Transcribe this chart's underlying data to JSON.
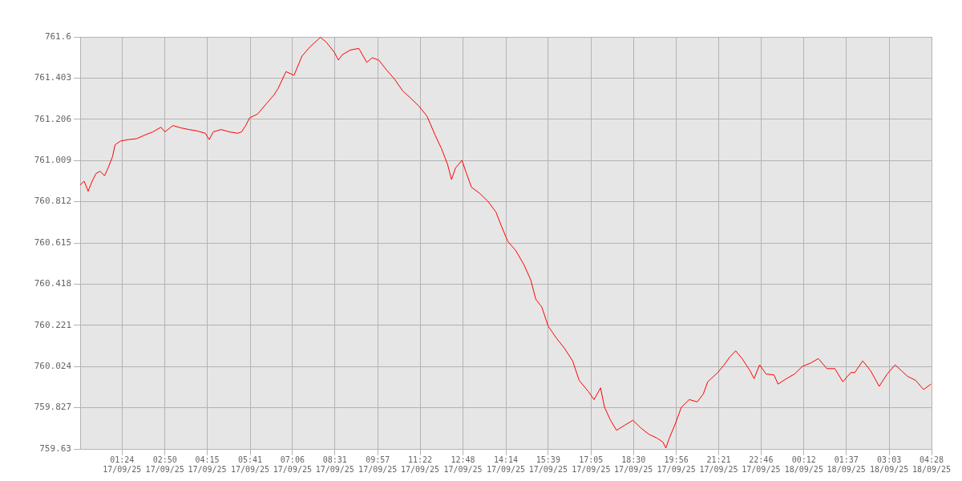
{
  "chart_data": {
    "type": "line",
    "grid": true,
    "xlim": [
      "--09-17T00:00",
      "--09-18T04:28"
    ],
    "xticks": [
      {
        "value": "--09-17T01:24",
        "label": "01:24 17/09/25"
      },
      {
        "value": "--09-17T02:50",
        "label": "02:50 17/09/25"
      },
      {
        "value": "--09-17T04:15",
        "label": "04:15 17/09/25"
      },
      {
        "value": "--09-17T05:41",
        "label": "05:41 17/09/25"
      },
      {
        "value": "--09-17T07:06",
        "label": "07:06 17/09/25"
      },
      {
        "value": "--09-17T08:31",
        "label": "08:31 17/09/25"
      },
      {
        "value": "--09-17T09:57",
        "label": "09:57 17/09/25"
      },
      {
        "value": "--09-17T11:22",
        "label": "11:22 17/09/25"
      },
      {
        "value": "--09-17T12:48",
        "label": "12:48 17/09/25"
      },
      {
        "value": "--09-17T14:14",
        "label": "14:14 17/09/25"
      },
      {
        "value": "--09-17T15:39",
        "label": "15:39 17/09/25"
      },
      {
        "value": "--09-17T17:05",
        "label": "17:05 17/09/25"
      },
      {
        "value": "--09-17T18:30",
        "label": "18:30 17/09/25"
      },
      {
        "value": "--09-17T19:56",
        "label": "19:56 17/09/25"
      },
      {
        "value": "--09-17T21:21",
        "label": "21:21 17/09/25"
      },
      {
        "value": "--09-17T22:46",
        "label": "22:46 17/09/25"
      },
      {
        "value": "--09-18T00:12",
        "label": "00:12 18/09/25"
      },
      {
        "value": "--09-18T01:37",
        "label": "01:37 18/09/25"
      },
      {
        "value": "--09-18T03:03",
        "label": "03:03 18/09/25"
      },
      {
        "value": "--09-18T04:28",
        "label": "04:28 18/09/25"
      }
    ],
    "ylim": [
      759.63,
      761.6
    ],
    "yticks": [
      759.63,
      759.827,
      760.024,
      760.221,
      760.418,
      760.615,
      760.812,
      761.009,
      761.206,
      761.403,
      761.6
    ],
    "series": [
      {
        "color": "#ff0000",
        "x": [
          "--09-17T00:00",
          "--09-17T00:08",
          "--09-17T00:16",
          "--09-17T00:24",
          "--09-17T00:32",
          "--09-17T00:40",
          "--09-17T00:49",
          "--09-17T00:56",
          "--09-17T01:05",
          "--09-17T01:10",
          "--09-17T01:21",
          "--09-17T01:37",
          "--09-17T01:53",
          "--09-17T02:10",
          "--09-17T02:26",
          "--09-17T02:42",
          "--09-17T02:50",
          "--09-17T03:06",
          "--09-17T03:22",
          "--09-17T03:38",
          "--09-17T03:55",
          "--09-17T04:11",
          "--09-17T04:19",
          "--09-17T04:27",
          "--09-17T04:43",
          "--09-17T04:59",
          "--09-17T05:16",
          "--09-17T05:24",
          "--09-17T05:32",
          "--09-17T05:40",
          "--09-17T05:56",
          "--09-17T06:13",
          "--09-17T06:29",
          "--09-17T06:37",
          "--09-17T06:53",
          "--09-17T07:09",
          "--09-17T07:25",
          "--09-17T07:41",
          "--09-17T07:58",
          "--09-17T08:02",
          "--09-17T08:14",
          "--09-17T08:30",
          "--09-17T08:38",
          "--09-17T08:46",
          "--09-17T09:02",
          "--09-17T09:19",
          "--09-17T09:35",
          "--09-17T09:46",
          "--09-17T09:59",
          "--09-17T10:15",
          "--09-17T10:31",
          "--09-17T10:47",
          "--09-17T11:04",
          "--09-17T11:20",
          "--09-17T11:36",
          "--09-17T11:52",
          "--09-17T12:05",
          "--09-17T12:17",
          "--09-17T12:25",
          "--09-17T12:33",
          "--09-17T12:46",
          "--09-17T12:54",
          "--09-17T13:05",
          "--09-17T13:22",
          "--09-17T13:38",
          "--09-17T13:54",
          "--09-17T14:05",
          "--09-17T14:18",
          "--09-17T14:34",
          "--09-17T14:50",
          "--09-17T15:04",
          "--09-17T15:14",
          "--09-17T15:26",
          "--09-17T15:39",
          "--09-17T15:55",
          "--09-17T16:11",
          "--09-17T16:28",
          "--09-17T16:41",
          "--09-17T17:00",
          "--09-17T17:11",
          "--09-17T17:24",
          "--09-17T17:32",
          "--09-17T17:44",
          "--09-17T17:56",
          "--09-17T18:13",
          "--09-17T18:29",
          "--09-17T18:45",
          "--09-17T19:01",
          "--09-17T19:17",
          "--09-17T19:29",
          "--09-17T19:35",
          "--09-17T19:42",
          "--09-17T19:55",
          "--09-17T20:06",
          "--09-17T20:22",
          "--09-17T20:38",
          "--09-17T20:50",
          "--09-17T20:59",
          "--09-17T21:19",
          "--09-17T21:32",
          "--09-17T21:43",
          "--09-17T21:55",
          "--09-17T22:08",
          "--09-17T22:24",
          "--09-17T22:32",
          "--09-17T22:43",
          "--09-17T22:56",
          "--09-17T23:12",
          "--09-17T23:20",
          "--09-17T23:37",
          "--09-17T23:53",
          "--09-18T00:09",
          "--09-18T00:25",
          "--09-18T00:41",
          "--09-18T00:58",
          "--09-18T01:14",
          "--09-18T01:30",
          "--09-18T01:46",
          "--09-18T01:54",
          "--09-18T02:10",
          "--09-18T02:26",
          "--09-18T02:43",
          "--09-18T02:59",
          "--09-18T03:15",
          "--09-18T03:28",
          "--09-18T03:40",
          "--09-18T03:56",
          "--09-18T04:12",
          "--09-18T04:27"
        ],
        "values": [
          760.892,
          760.91,
          760.862,
          760.91,
          760.947,
          760.958,
          760.936,
          760.973,
          761.028,
          761.084,
          761.102,
          761.109,
          761.113,
          761.131,
          761.146,
          761.168,
          761.146,
          761.176,
          761.165,
          761.157,
          761.15,
          761.139,
          761.109,
          761.146,
          761.157,
          761.146,
          761.139,
          761.146,
          761.176,
          761.213,
          761.231,
          761.279,
          761.323,
          761.353,
          761.434,
          761.416,
          761.508,
          761.552,
          761.589,
          761.598,
          761.574,
          761.526,
          761.489,
          761.515,
          761.537,
          761.545,
          761.478,
          761.5,
          761.489,
          761.441,
          761.397,
          761.342,
          761.305,
          761.268,
          761.22,
          761.131,
          761.065,
          760.991,
          760.918,
          760.973,
          761.01,
          760.954,
          760.881,
          760.851,
          760.814,
          760.763,
          760.696,
          760.622,
          760.578,
          760.512,
          760.438,
          760.346,
          760.309,
          760.217,
          760.161,
          760.113,
          760.051,
          759.958,
          759.903,
          759.866,
          759.922,
          759.829,
          759.767,
          759.719,
          759.744,
          759.767,
          759.73,
          759.7,
          759.682,
          759.663,
          759.634,
          759.682,
          759.756,
          759.829,
          759.866,
          759.855,
          759.892,
          759.951,
          759.995,
          760.032,
          760.069,
          760.099,
          760.062,
          760.003,
          759.966,
          760.032,
          759.988,
          759.984,
          759.94,
          759.966,
          759.988,
          760.025,
          760.04,
          760.062,
          760.014,
          760.014,
          759.951,
          759.995,
          759.995,
          760.051,
          760.003,
          759.929,
          759.988,
          760.032,
          760.003,
          759.977,
          759.958,
          759.914,
          759.94
        ]
      }
    ]
  }
}
